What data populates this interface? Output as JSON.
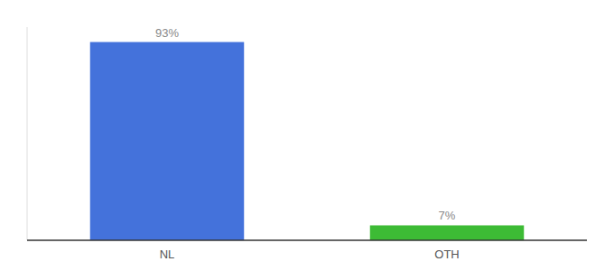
{
  "chart_data": {
    "type": "bar",
    "categories": [
      "NL",
      "OTH"
    ],
    "values": [
      93,
      7
    ],
    "value_labels": [
      "93%",
      "7%"
    ],
    "colors": [
      "#4472db",
      "#3dbb35"
    ],
    "ylim": [
      0,
      100
    ],
    "data_labels": true,
    "tick_labels": "x"
  }
}
